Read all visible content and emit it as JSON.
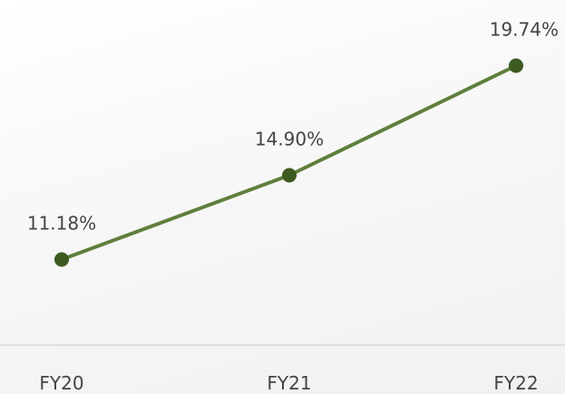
{
  "chart_data": {
    "type": "line",
    "categories": [
      "FY20",
      "FY21",
      "FY22"
    ],
    "series": [
      {
        "values": [
          11.18,
          14.9,
          19.74
        ],
        "labels": [
          "11.18%",
          "14.90%",
          "19.74%"
        ]
      }
    ],
    "unit": "%",
    "ylim": [
      0,
      25
    ],
    "grid": false,
    "legend": "none",
    "colors": {
      "line": "#5f7f3c",
      "marker": "#3d5a22",
      "axis": "#d6d6d6",
      "text": "#444444"
    }
  }
}
